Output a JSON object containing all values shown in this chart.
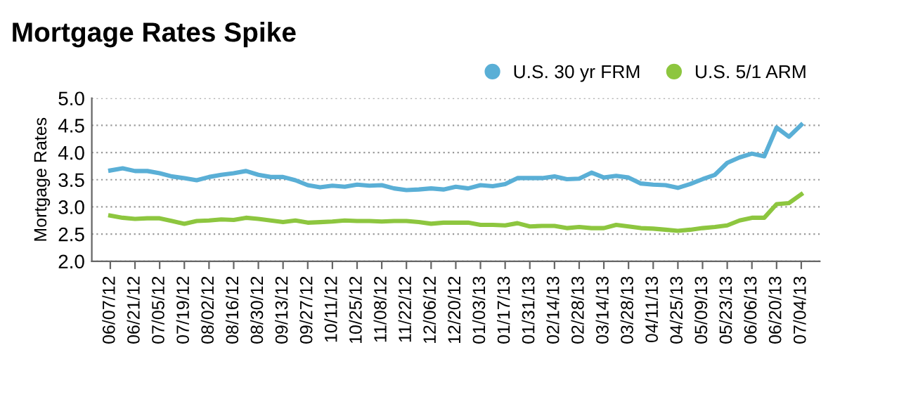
{
  "chart_data": {
    "type": "line",
    "title": "Mortgage Rates Spike",
    "ylabel": "Mortgage Rates",
    "categories": [
      "06/07/12",
      null,
      "06/21/12",
      null,
      "07/05/12",
      null,
      "07/19/12",
      null,
      "08/02/12",
      null,
      "08/16/12",
      null,
      "08/30/12",
      null,
      "09/13/12",
      null,
      "09/27/12",
      null,
      "10/11/12",
      null,
      "10/25/12",
      null,
      "11/08/12",
      null,
      "11/22/12",
      null,
      "12/06/12",
      null,
      "12/20/12",
      null,
      "01/03/13",
      null,
      "01/17/13",
      null,
      "01/31/13",
      null,
      "02/14/13",
      null,
      "02/28/13",
      null,
      "03/14/13",
      null,
      "03/28/13",
      null,
      "04/11/13",
      null,
      "04/25/13",
      null,
      "05/09/13",
      null,
      "05/23/13",
      null,
      "06/06/13",
      null,
      "06/20/13",
      null,
      "07/04/13"
    ],
    "series": [
      {
        "name": "U.S. 30 yr FRM",
        "color": "#5aafd6",
        "values": [
          3.67,
          3.71,
          3.66,
          3.66,
          3.62,
          3.56,
          3.53,
          3.49,
          3.55,
          3.59,
          3.62,
          3.66,
          3.59,
          3.55,
          3.55,
          3.49,
          3.4,
          3.36,
          3.39,
          3.37,
          3.41,
          3.39,
          3.4,
          3.34,
          3.31,
          3.32,
          3.34,
          3.32,
          3.37,
          3.34,
          3.4,
          3.38,
          3.42,
          3.53,
          3.53,
          3.53,
          3.56,
          3.51,
          3.52,
          3.63,
          3.54,
          3.57,
          3.54,
          3.43,
          3.41,
          3.4,
          3.35,
          3.42,
          3.51,
          3.59,
          3.81,
          3.91,
          3.98,
          3.93,
          4.46,
          4.29,
          4.51
        ]
      },
      {
        "name": "U.S. 5/1 ARM",
        "color": "#8dc63f",
        "values": [
          2.84,
          2.8,
          2.78,
          2.79,
          2.79,
          2.74,
          2.69,
          2.74,
          2.75,
          2.77,
          2.76,
          2.8,
          2.78,
          2.75,
          2.72,
          2.75,
          2.71,
          2.72,
          2.73,
          2.75,
          2.74,
          2.74,
          2.73,
          2.74,
          2.74,
          2.72,
          2.69,
          2.71,
          2.71,
          2.71,
          2.67,
          2.67,
          2.66,
          2.7,
          2.64,
          2.65,
          2.65,
          2.61,
          2.63,
          2.61,
          2.61,
          2.67,
          2.64,
          2.61,
          2.6,
          2.58,
          2.56,
          2.58,
          2.61,
          2.63,
          2.66,
          2.75,
          2.8,
          2.8,
          3.05,
          3.07,
          3.23
        ]
      }
    ],
    "ylim": [
      2.0,
      5.0
    ],
    "yticks": [
      {
        "value": 2.0,
        "label": "2.0"
      },
      {
        "value": 2.5,
        "label": "2.5"
      },
      {
        "value": 3.0,
        "label": "3.0"
      },
      {
        "value": 3.5,
        "label": "3.5"
      },
      {
        "value": 4.0,
        "label": "4.0"
      },
      {
        "value": 4.5,
        "label": "4.5"
      },
      {
        "value": 5.0,
        "label": "5.0"
      }
    ],
    "grid": "y",
    "legend": "top right",
    "marker": "none",
    "line_style": "solid"
  }
}
